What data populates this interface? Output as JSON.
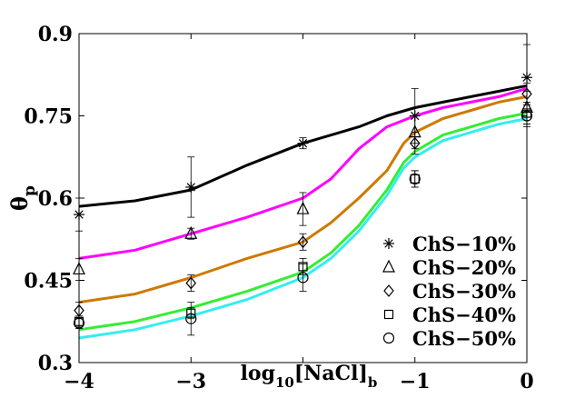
{
  "chart_data": {
    "type": "line",
    "title": "",
    "xlabel": "log10[NaCl]b",
    "xlabel_parts": {
      "main": "log",
      "sub1": "10",
      "mid": "[NaCl]",
      "sub2": "b"
    },
    "ylabel": "θp",
    "ylabel_parts": {
      "main": "θ",
      "sub": "p"
    },
    "xlim": [
      -4,
      0
    ],
    "ylim": [
      0.3,
      0.9
    ],
    "x_ticks": [
      -4,
      -3,
      -2,
      -1,
      0
    ],
    "x_tick_labels": [
      "−4",
      "−3",
      "",
      "−1",
      "0"
    ],
    "y_ticks": [
      0.3,
      0.45,
      0.6,
      0.75,
      0.9
    ],
    "y_tick_labels": [
      "0.3",
      "0.45",
      "0.6",
      "0.75",
      "0.9"
    ],
    "legend_position": "bottom-right",
    "series": [
      {
        "name": "ChS−10%",
        "color": "#000000",
        "marker": "asterisk",
        "line_x": [
          -4,
          -3.5,
          -3,
          -2.5,
          -2,
          -1.5,
          -1.25,
          -1,
          -0.75,
          -0.5,
          -0.25,
          0
        ],
        "line_y": [
          0.585,
          0.595,
          0.615,
          0.66,
          0.7,
          0.73,
          0.75,
          0.765,
          0.775,
          0.785,
          0.795,
          0.805
        ],
        "points_x": [
          -4,
          -3,
          -2,
          -1,
          0
        ],
        "points_y": [
          0.57,
          0.62,
          0.7,
          0.75,
          0.82
        ],
        "err": [
          0.03,
          0.055,
          0.01,
          0.05,
          0.06
        ]
      },
      {
        "name": "ChS−20%",
        "color": "#ff00ff",
        "marker": "triangle",
        "line_x": [
          -4,
          -3.5,
          -3,
          -2.5,
          -2,
          -1.75,
          -1.5,
          -1.25,
          -1,
          -0.75,
          -0.5,
          -0.25,
          0
        ],
        "line_y": [
          0.49,
          0.505,
          0.535,
          0.565,
          0.6,
          0.635,
          0.69,
          0.73,
          0.75,
          0.765,
          0.775,
          0.785,
          0.8
        ],
        "points_x": [
          -4,
          -3,
          -2,
          -1,
          0
        ],
        "points_y": [
          0.47,
          0.535,
          0.58,
          0.72,
          0.765
        ],
        "err": [
          0.02,
          0.01,
          0.03,
          0.03,
          0.03
        ]
      },
      {
        "name": "ChS−30%",
        "color": "#cc7a00",
        "marker": "diamond",
        "line_x": [
          -4,
          -3.5,
          -3,
          -2.5,
          -2,
          -1.75,
          -1.5,
          -1.25,
          -1.1,
          -1,
          -0.75,
          -0.5,
          -0.25,
          0
        ],
        "line_y": [
          0.41,
          0.425,
          0.455,
          0.49,
          0.52,
          0.555,
          0.6,
          0.65,
          0.7,
          0.72,
          0.745,
          0.76,
          0.775,
          0.785
        ],
        "points_x": [
          -4,
          -3,
          -2,
          -1,
          0
        ],
        "points_y": [
          0.395,
          0.445,
          0.52,
          0.7,
          0.79
        ],
        "err": [
          0.015,
          0.015,
          0.015,
          0.02,
          0.02
        ]
      },
      {
        "name": "ChS−40%",
        "color": "#33ee33",
        "marker": "square",
        "line_x": [
          -4,
          -3.5,
          -3,
          -2.5,
          -2,
          -1.75,
          -1.5,
          -1.25,
          -1.1,
          -1,
          -0.75,
          -0.5,
          -0.25,
          0
        ],
        "line_y": [
          0.36,
          0.375,
          0.4,
          0.43,
          0.465,
          0.5,
          0.55,
          0.615,
          0.665,
          0.685,
          0.715,
          0.73,
          0.745,
          0.755
        ],
        "points_x": [
          -4,
          -3,
          -2,
          -1,
          0
        ],
        "points_y": [
          0.375,
          0.39,
          0.475,
          0.635,
          0.755
        ],
        "err": [
          0.01,
          0.01,
          0.015,
          0.015,
          0.02
        ]
      },
      {
        "name": "ChS−50%",
        "color": "#33eeee",
        "marker": "circle",
        "line_x": [
          -4,
          -3.5,
          -3,
          -2.5,
          -2,
          -1.75,
          -1.5,
          -1.25,
          -1.1,
          -1,
          -0.75,
          -0.5,
          -0.25,
          0
        ],
        "line_y": [
          0.345,
          0.36,
          0.385,
          0.415,
          0.455,
          0.49,
          0.54,
          0.605,
          0.655,
          0.675,
          0.705,
          0.72,
          0.735,
          0.745
        ],
        "points_x": [
          -4,
          -3,
          -2,
          -1,
          0
        ],
        "points_y": [
          0.372,
          0.38,
          0.455,
          0.635,
          0.75
        ],
        "err": [
          0.01,
          0.03,
          0.025,
          0.015,
          0.02
        ]
      }
    ]
  }
}
